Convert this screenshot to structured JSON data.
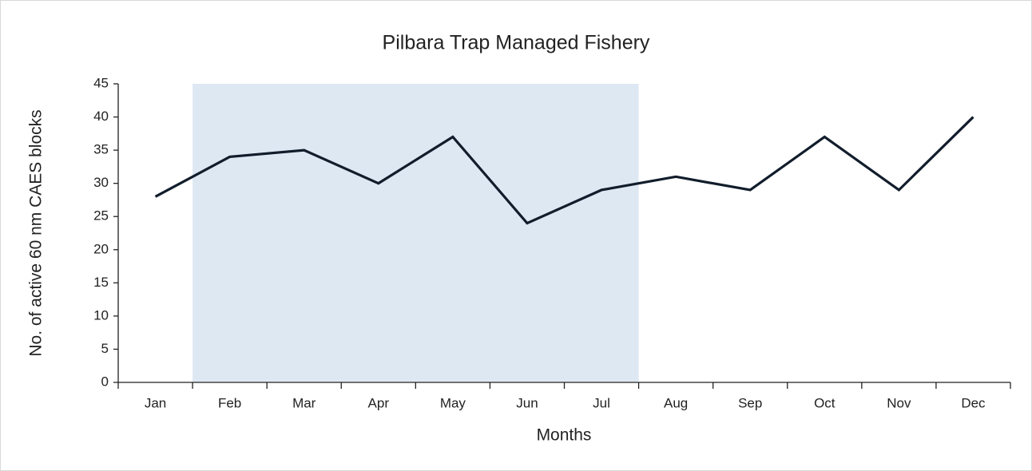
{
  "chart_data": {
    "type": "line",
    "title": "Pilbara Trap Managed Fishery",
    "xlabel": "Months",
    "ylabel": "No. of active 60 nm CAES blocks",
    "categories": [
      "Jan",
      "Feb",
      "Mar",
      "Apr",
      "May",
      "Jun",
      "Jul",
      "Aug",
      "Sep",
      "Oct",
      "Nov",
      "Dec"
    ],
    "series": [
      {
        "name": "Active blocks",
        "color": "#111d2b",
        "values": [
          28,
          34,
          35,
          30,
          37,
          24,
          29,
          31,
          29,
          37,
          29,
          40
        ]
      }
    ],
    "ylim": [
      0,
      45
    ],
    "yticks": [
      0,
      5,
      10,
      15,
      20,
      25,
      30,
      35,
      40,
      45
    ],
    "highlight_range": [
      "Feb",
      "Jul"
    ],
    "highlight_color": "#dde8f3",
    "grid": false
  }
}
